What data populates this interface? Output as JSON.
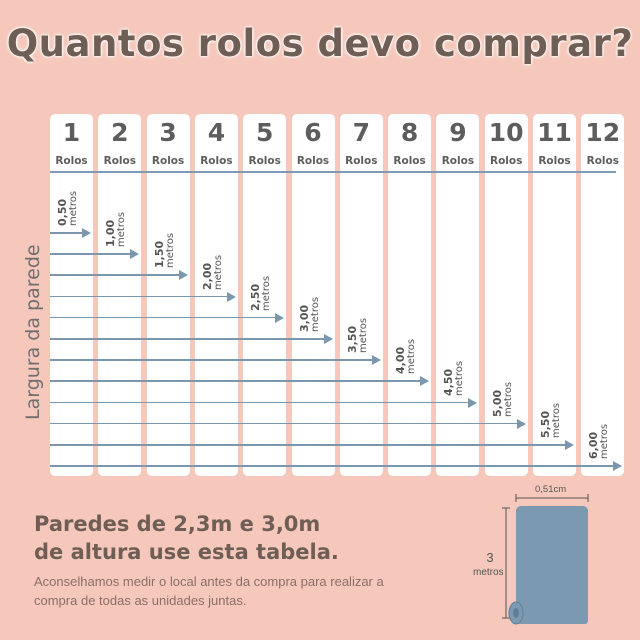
{
  "title": "Quantos rolos devo comprar?",
  "axis_label": "Largura da parede",
  "unit_label": "Rolos",
  "columns": [
    "1",
    "2",
    "3",
    "4",
    "5",
    "6",
    "7",
    "8",
    "9",
    "10",
    "11",
    "12"
  ],
  "measurements": [
    {
      "value": "0,50",
      "unit": "metros"
    },
    {
      "value": "1,00",
      "unit": "metros"
    },
    {
      "value": "1,50",
      "unit": "metros"
    },
    {
      "value": "2,00",
      "unit": "metros"
    },
    {
      "value": "2,50",
      "unit": "metros"
    },
    {
      "value": "3,00",
      "unit": "metros"
    },
    {
      "value": "3,50",
      "unit": "metros"
    },
    {
      "value": "4,00",
      "unit": "metros"
    },
    {
      "value": "4,50",
      "unit": "metros"
    },
    {
      "value": "5,00",
      "unit": "metros"
    },
    {
      "value": "5,50",
      "unit": "metros"
    },
    {
      "value": "6,00",
      "unit": "metros"
    }
  ],
  "subheading_line1": "Paredes de 2,3m e 3,0m",
  "subheading_line2": "de altura use esta tabela.",
  "note": "Aconselhamos medir o local antes da compra para realizar a compra de todas as unidades juntas.",
  "roll": {
    "width_label": "0,51cm",
    "height_value": "3",
    "height_unit": "metros",
    "color": "#7b99b1"
  },
  "colors": {
    "background": "#f5c8bb",
    "title": "#6e5e55",
    "accent_blue": "#7a97ae"
  }
}
